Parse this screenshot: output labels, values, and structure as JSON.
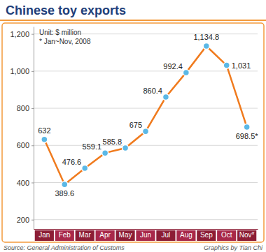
{
  "chart_data": {
    "type": "line",
    "title": "Chinese toy exports",
    "categories": [
      "Jan",
      "Feb",
      "Mar",
      "Apr",
      "May",
      "Jun",
      "Jul",
      "Aug",
      "Sep",
      "Oct",
      "Nov*"
    ],
    "values": [
      632,
      389.6,
      476.6,
      559.1,
      585.8,
      675,
      860.4,
      992.4,
      1134.8,
      1031,
      698.5
    ],
    "value_labels": [
      "632",
      "389.6",
      "476.6",
      "559.1",
      "585.8",
      "675",
      "860.4",
      "992.4",
      "1,134.8",
      "1,031",
      "698.5*"
    ],
    "data_labels": true,
    "color": "#f07b1e",
    "marker": "circle",
    "ylim": [
      150,
      1240
    ],
    "yticks": [
      200,
      400,
      600,
      800,
      {
        "value": 1000,
        "label": "1,000"
      },
      {
        "value": 1200,
        "label": "1,200"
      }
    ],
    "grid": true,
    "annotations": [
      "Unit: $ million",
      "* Jan~Nov, 2008",
      "Source: General Administration of Customs",
      "Graphics by Tian Chi"
    ]
  }
}
